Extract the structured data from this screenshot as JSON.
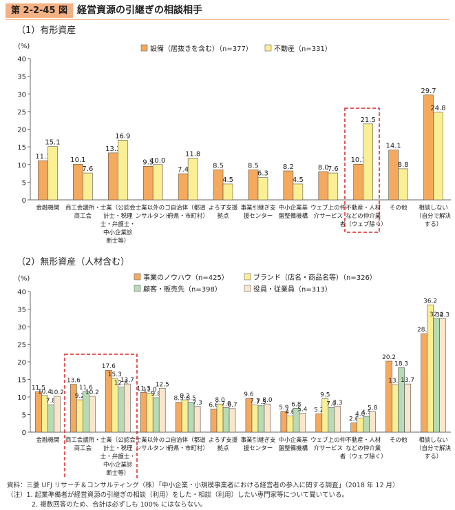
{
  "header": {
    "figure_number": "第 2-2-45 図",
    "title": "経営資源の引継ぎの相談相手"
  },
  "footer": {
    "source": "資料：三菱 UFJ リサーチ＆コンサルティング（株）「中小企業・小規模事業者における経営者の参入に関する調査」（2018 年 12 月）",
    "note1": "（注）1. 起業準備者が経営資源の引継ぎの相談（利用）をした・相談（利用）したい専門家等について聞いている。",
    "note2": "2. 複数回答のため、合計は必ずしも 100% にはならない。"
  },
  "chart_data": [
    {
      "type": "bar",
      "title": "（1）有形資産",
      "ylabel": "(%)",
      "ylim": [
        0,
        40
      ],
      "yticks": [
        0,
        5,
        10,
        15,
        20,
        25,
        30,
        35,
        40
      ],
      "legend_position": "top",
      "categories": [
        [
          "金融機関"
        ],
        [
          "商工会議所・",
          "商工会"
        ],
        [
          "士業（公認会",
          "計士・税理",
          "士・弁護士・",
          "中小企業診",
          "断士等）"
        ],
        [
          "士業以外のコ",
          "ンサルタント"
        ],
        [
          "自治体（都道",
          "府県・市町村）"
        ],
        [
          "よろず支援",
          "拠点"
        ],
        [
          "事業引継ぎ支",
          "援センター"
        ],
        [
          "中小企業基",
          "盤整備機構"
        ],
        [
          "ウェブ上の仲",
          "介サービス"
        ],
        [
          "不動産・人材",
          "などの仲介業",
          "者（ウェブ除く）"
        ],
        [
          "その他"
        ],
        [
          "相談しない",
          "（自分で解決",
          "する）"
        ]
      ],
      "series": [
        {
          "name": "設備（居抜きを含む）（n=377）",
          "color": "#f5a95c",
          "values": [
            11.1,
            10.1,
            13.3,
            9.5,
            7.4,
            8.5,
            8.5,
            8.2,
            8.0,
            10.1,
            14.1,
            29.7
          ]
        },
        {
          "name": "不動産（n=331）",
          "color": "#fbef93",
          "values": [
            15.1,
            7.6,
            16.9,
            10.0,
            11.8,
            4.5,
            6.3,
            4.5,
            7.6,
            21.5,
            8.8,
            24.8
          ]
        }
      ],
      "highlight_category_index": 9
    },
    {
      "type": "bar",
      "title": "（2）無形資産（人材含む）",
      "ylabel": "(%)",
      "ylim": [
        0,
        40
      ],
      "yticks": [
        0,
        5,
        10,
        15,
        20,
        25,
        30,
        35,
        40
      ],
      "legend_position": "top",
      "categories": [
        [
          "金融機関"
        ],
        [
          "商工会議所・",
          "商工会"
        ],
        [
          "士業（公認会",
          "計士・税理",
          "士・弁護士・",
          "中小企業診",
          "断士等）"
        ],
        [
          "士業以外のコ",
          "ンサルタント"
        ],
        [
          "自治体（都道",
          "府県・市町村）"
        ],
        [
          "よろず支援",
          "拠点"
        ],
        [
          "事業引継ぎ支",
          "援センター"
        ],
        [
          "中小企業基",
          "盤整備機構"
        ],
        [
          "ウェブ上の仲",
          "介サービス"
        ],
        [
          "不動産・人材",
          "などの仲介業",
          "者（ウェブ除く）"
        ],
        [
          "その他"
        ],
        [
          "相談しない",
          "（自分で解決",
          "する）"
        ]
      ],
      "series": [
        {
          "name": "事業のノウハウ（n=425）",
          "color": "#f5a95c",
          "values": [
            11.5,
            13.6,
            17.6,
            11.3,
            8.5,
            6.6,
            9.6,
            5.9,
            5.2,
            2.6,
            20.2,
            28.0
          ]
        },
        {
          "name": "ブランド（店名・商品名等）（n=326）",
          "color": "#fbef93",
          "values": [
            10.4,
            9.2,
            15.3,
            11.0,
            9.2,
            8.0,
            7.7,
            4.6,
            9.5,
            4.0,
            13.5,
            36.2
          ]
        },
        {
          "name": "顧客・販売先（n=398）",
          "color": "#b7dbb5",
          "values": [
            7.8,
            11.6,
            12.8,
            9.8,
            8.5,
            7.0,
            7.5,
            6.8,
            7.0,
            4.5,
            18.3,
            32.4
          ]
        },
        {
          "name": "役員・従業員（n=313）",
          "color": "#fbe6cd",
          "values": [
            10.2,
            10.2,
            13.7,
            12.5,
            7.3,
            6.7,
            8.0,
            5.4,
            7.3,
            5.8,
            13.7,
            32.3
          ]
        }
      ],
      "highlight_category_index": 2
    }
  ]
}
